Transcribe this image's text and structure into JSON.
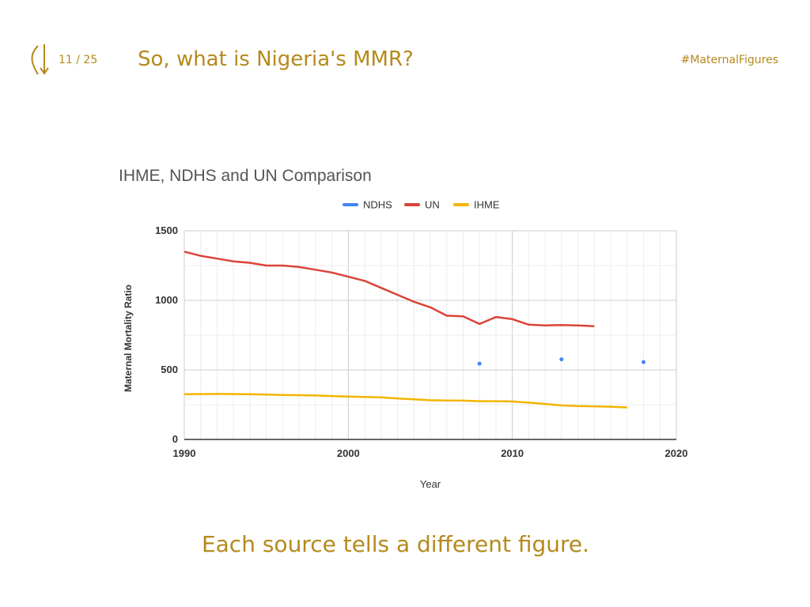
{
  "header": {
    "counter": "11 / 25",
    "title": "So, what is Nigeria's MMR?",
    "hashtag": "#MaternalFigures"
  },
  "caption": "Each source tells a different figure.",
  "chart_data": {
    "type": "line",
    "title": "IHME, NDHS and UN Comparison",
    "xlabel": "Year",
    "ylabel": "Maternal Mortality Ratio",
    "xlim": [
      1990,
      2020
    ],
    "ylim": [
      0,
      1500
    ],
    "xticks": [
      1990,
      2000,
      2010,
      2020
    ],
    "yticks": [
      0,
      500,
      1000,
      1500
    ],
    "grid": true,
    "legend_position": "top",
    "series": [
      {
        "name": "NDHS",
        "color": "#4285f4",
        "style": "points",
        "x": [
          2008,
          2013,
          2018
        ],
        "y": [
          545,
          576,
          556
        ]
      },
      {
        "name": "UN",
        "color": "#db4437",
        "style": "line",
        "x": [
          1990,
          1991,
          1992,
          1993,
          1994,
          1995,
          1996,
          1997,
          1998,
          1999,
          2000,
          2001,
          2002,
          2003,
          2004,
          2005,
          2006,
          2007,
          2008,
          2009,
          2010,
          2011,
          2012,
          2013,
          2014,
          2015
        ],
        "y": [
          1350,
          1320,
          1300,
          1280,
          1270,
          1250,
          1250,
          1240,
          1220,
          1200,
          1170,
          1140,
          1090,
          1040,
          990,
          950,
          890,
          885,
          830,
          880,
          865,
          825,
          820,
          822,
          820,
          814
        ]
      },
      {
        "name": "IHME",
        "color": "#f4b400",
        "style": "line",
        "x": [
          1990,
          1991,
          1992,
          1993,
          1994,
          1995,
          1996,
          1997,
          1998,
          1999,
          2000,
          2001,
          2002,
          2003,
          2004,
          2005,
          2006,
          2007,
          2008,
          2009,
          2010,
          2011,
          2012,
          2013,
          2014,
          2015,
          2016,
          2017
        ],
        "y": [
          325,
          326,
          327,
          326,
          325,
          322,
          320,
          318,
          316,
          312,
          308,
          305,
          302,
          295,
          288,
          282,
          280,
          279,
          275,
          275,
          273,
          265,
          255,
          245,
          240,
          238,
          235,
          230
        ]
      }
    ]
  }
}
